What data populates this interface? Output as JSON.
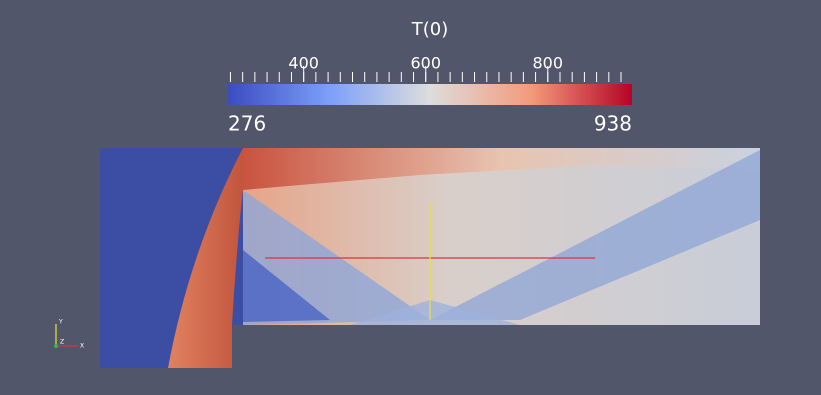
{
  "colorbar": {
    "title": "T(0)",
    "range": [
      276,
      938
    ],
    "ticks": [
      400,
      600,
      800
    ],
    "minor_ticks": [
      280,
      300,
      320,
      340,
      360,
      380,
      400,
      420,
      440,
      460,
      480,
      500,
      520,
      540,
      560,
      580,
      600,
      620,
      640,
      660,
      680,
      700,
      720,
      740,
      760,
      780,
      800,
      820,
      840,
      860,
      880,
      900,
      920
    ]
  },
  "axes_triad": {
    "y": "Y",
    "z": "Z",
    "x": "X"
  }
}
